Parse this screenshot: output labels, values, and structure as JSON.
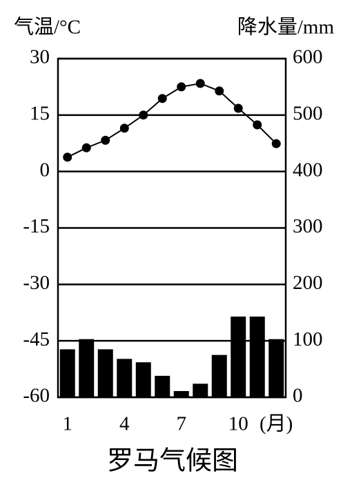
{
  "chart_data": {
    "type": "bar",
    "title": "罗马气候图",
    "y_label": "气温/°C",
    "y2_label": "降水量/mm",
    "x_label": "(月)",
    "categories": [
      "1",
      null,
      null,
      "4",
      null,
      null,
      "7",
      null,
      null,
      "10",
      null,
      null
    ],
    "series": [
      {
        "type": "bar",
        "axis": "y2",
        "color": "#000000",
        "values": [
          85,
          103,
          85,
          68,
          62,
          38,
          11,
          24,
          75,
          143,
          143,
          103
        ]
      },
      {
        "type": "line",
        "axis": "y",
        "color": "#000000",
        "values": [
          3.8,
          6.3,
          8.3,
          11.5,
          15,
          19.4,
          22.5,
          23.4,
          21.4,
          16.8,
          12.4,
          7.4
        ]
      }
    ],
    "ylim": [
      -60,
      30
    ],
    "yticks": [
      -60,
      -45,
      -30,
      -15,
      0,
      15,
      30
    ],
    "y2lim": [
      0,
      600
    ],
    "y2ticks": [
      0,
      100,
      200,
      300,
      400,
      500,
      600
    ],
    "grid": true
  }
}
